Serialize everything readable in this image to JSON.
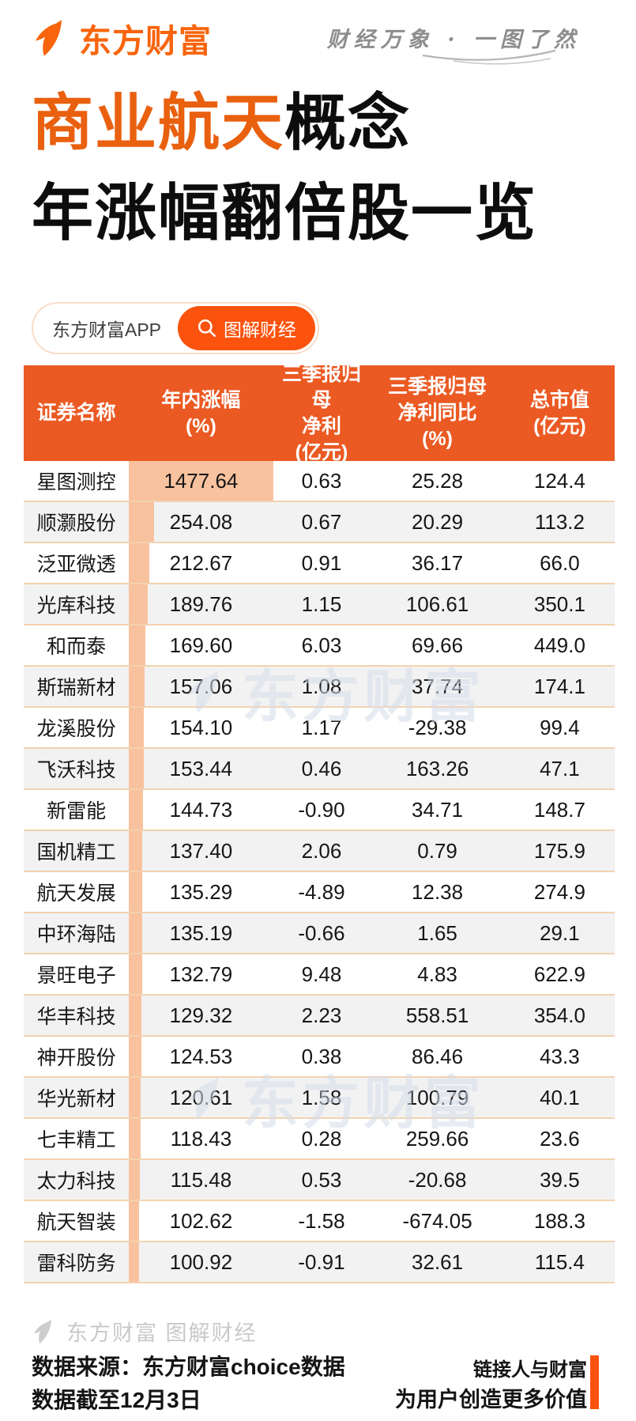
{
  "header": {
    "brand": "东方财富",
    "tagline": "财经万象 · 一图了然"
  },
  "title": {
    "line1_highlight": "商业航天",
    "line1_rest": "概念",
    "line2": "年涨幅翻倍股一览"
  },
  "badge": {
    "app_label": "东方财富APP",
    "button_label": "图解财经"
  },
  "table": {
    "headers": [
      {
        "lines": [
          "证券名称"
        ]
      },
      {
        "lines": [
          "年内涨幅",
          "(%)"
        ]
      },
      {
        "lines": [
          "三季报归母",
          "净利",
          "(亿元)"
        ]
      },
      {
        "lines": [
          "三季报归母",
          "净利同比",
          "(%)"
        ]
      },
      {
        "lines": [
          "总市值",
          "(亿元)"
        ]
      }
    ]
  },
  "watermark": {
    "text": "东方财富"
  },
  "footer": {
    "brand_line": "东方财富 图解财经",
    "source_line1": "数据来源：东方财富choice数据",
    "source_line2": "数据截至12月3日",
    "slogan_line1": "链接人与财富",
    "slogan_line2": "为用户创造更多价值"
  },
  "colors": {
    "brand_orange": "#F8650D",
    "title_orange": "#E9600F",
    "table_header_orange": "#EB5A23",
    "button_orange": "#FB530E",
    "gain_bar_fill": "#F8C29E",
    "row_alt_gray": "#F2F2F2",
    "row_separator": "#F3D2B0",
    "watermark_gray_blue": "#D5DDEA",
    "footer_gray": "#C9C9C9"
  },
  "chart_data": {
    "type": "table",
    "title": "商业航天概念 年涨幅翻倍股一览",
    "columns": [
      "证券名称",
      "年内涨幅(%)",
      "三季报归母净利(亿元)",
      "三季报归母净利同比(%)",
      "总市值(亿元)"
    ],
    "bar_column": "年内涨幅(%)",
    "bar_scale_max": 1477.64,
    "rows": [
      [
        "星图测控",
        1477.64,
        0.63,
        25.28,
        124.4
      ],
      [
        "顺灏股份",
        254.08,
        0.67,
        20.29,
        113.2
      ],
      [
        "泛亚微透",
        212.67,
        0.91,
        36.17,
        66.0
      ],
      [
        "光库科技",
        189.76,
        1.15,
        106.61,
        350.1
      ],
      [
        "和而泰",
        169.6,
        6.03,
        69.66,
        449.0
      ],
      [
        "斯瑞新材",
        157.06,
        1.08,
        37.74,
        174.1
      ],
      [
        "龙溪股份",
        154.1,
        1.17,
        -29.38,
        99.4
      ],
      [
        "飞沃科技",
        153.44,
        0.46,
        163.26,
        47.1
      ],
      [
        "新雷能",
        144.73,
        -0.9,
        34.71,
        148.7
      ],
      [
        "国机精工",
        137.4,
        2.06,
        0.79,
        175.9
      ],
      [
        "航天发展",
        135.29,
        -4.89,
        12.38,
        274.9
      ],
      [
        "中环海陆",
        135.19,
        -0.66,
        1.65,
        29.1
      ],
      [
        "景旺电子",
        132.79,
        9.48,
        4.83,
        622.9
      ],
      [
        "华丰科技",
        129.32,
        2.23,
        558.51,
        354.0
      ],
      [
        "神开股份",
        124.53,
        0.38,
        86.46,
        43.3
      ],
      [
        "华光新材",
        120.61,
        1.58,
        100.79,
        40.1
      ],
      [
        "七丰精工",
        118.43,
        0.28,
        259.66,
        23.6
      ],
      [
        "太力科技",
        115.48,
        0.53,
        -20.68,
        39.5
      ],
      [
        "航天智装",
        102.62,
        -1.58,
        -674.05,
        188.3
      ],
      [
        "雷科防务",
        100.92,
        -0.91,
        32.61,
        115.4
      ]
    ],
    "notes": [
      "数据来源：东方财富choice数据",
      "数据截至12月3日"
    ]
  }
}
